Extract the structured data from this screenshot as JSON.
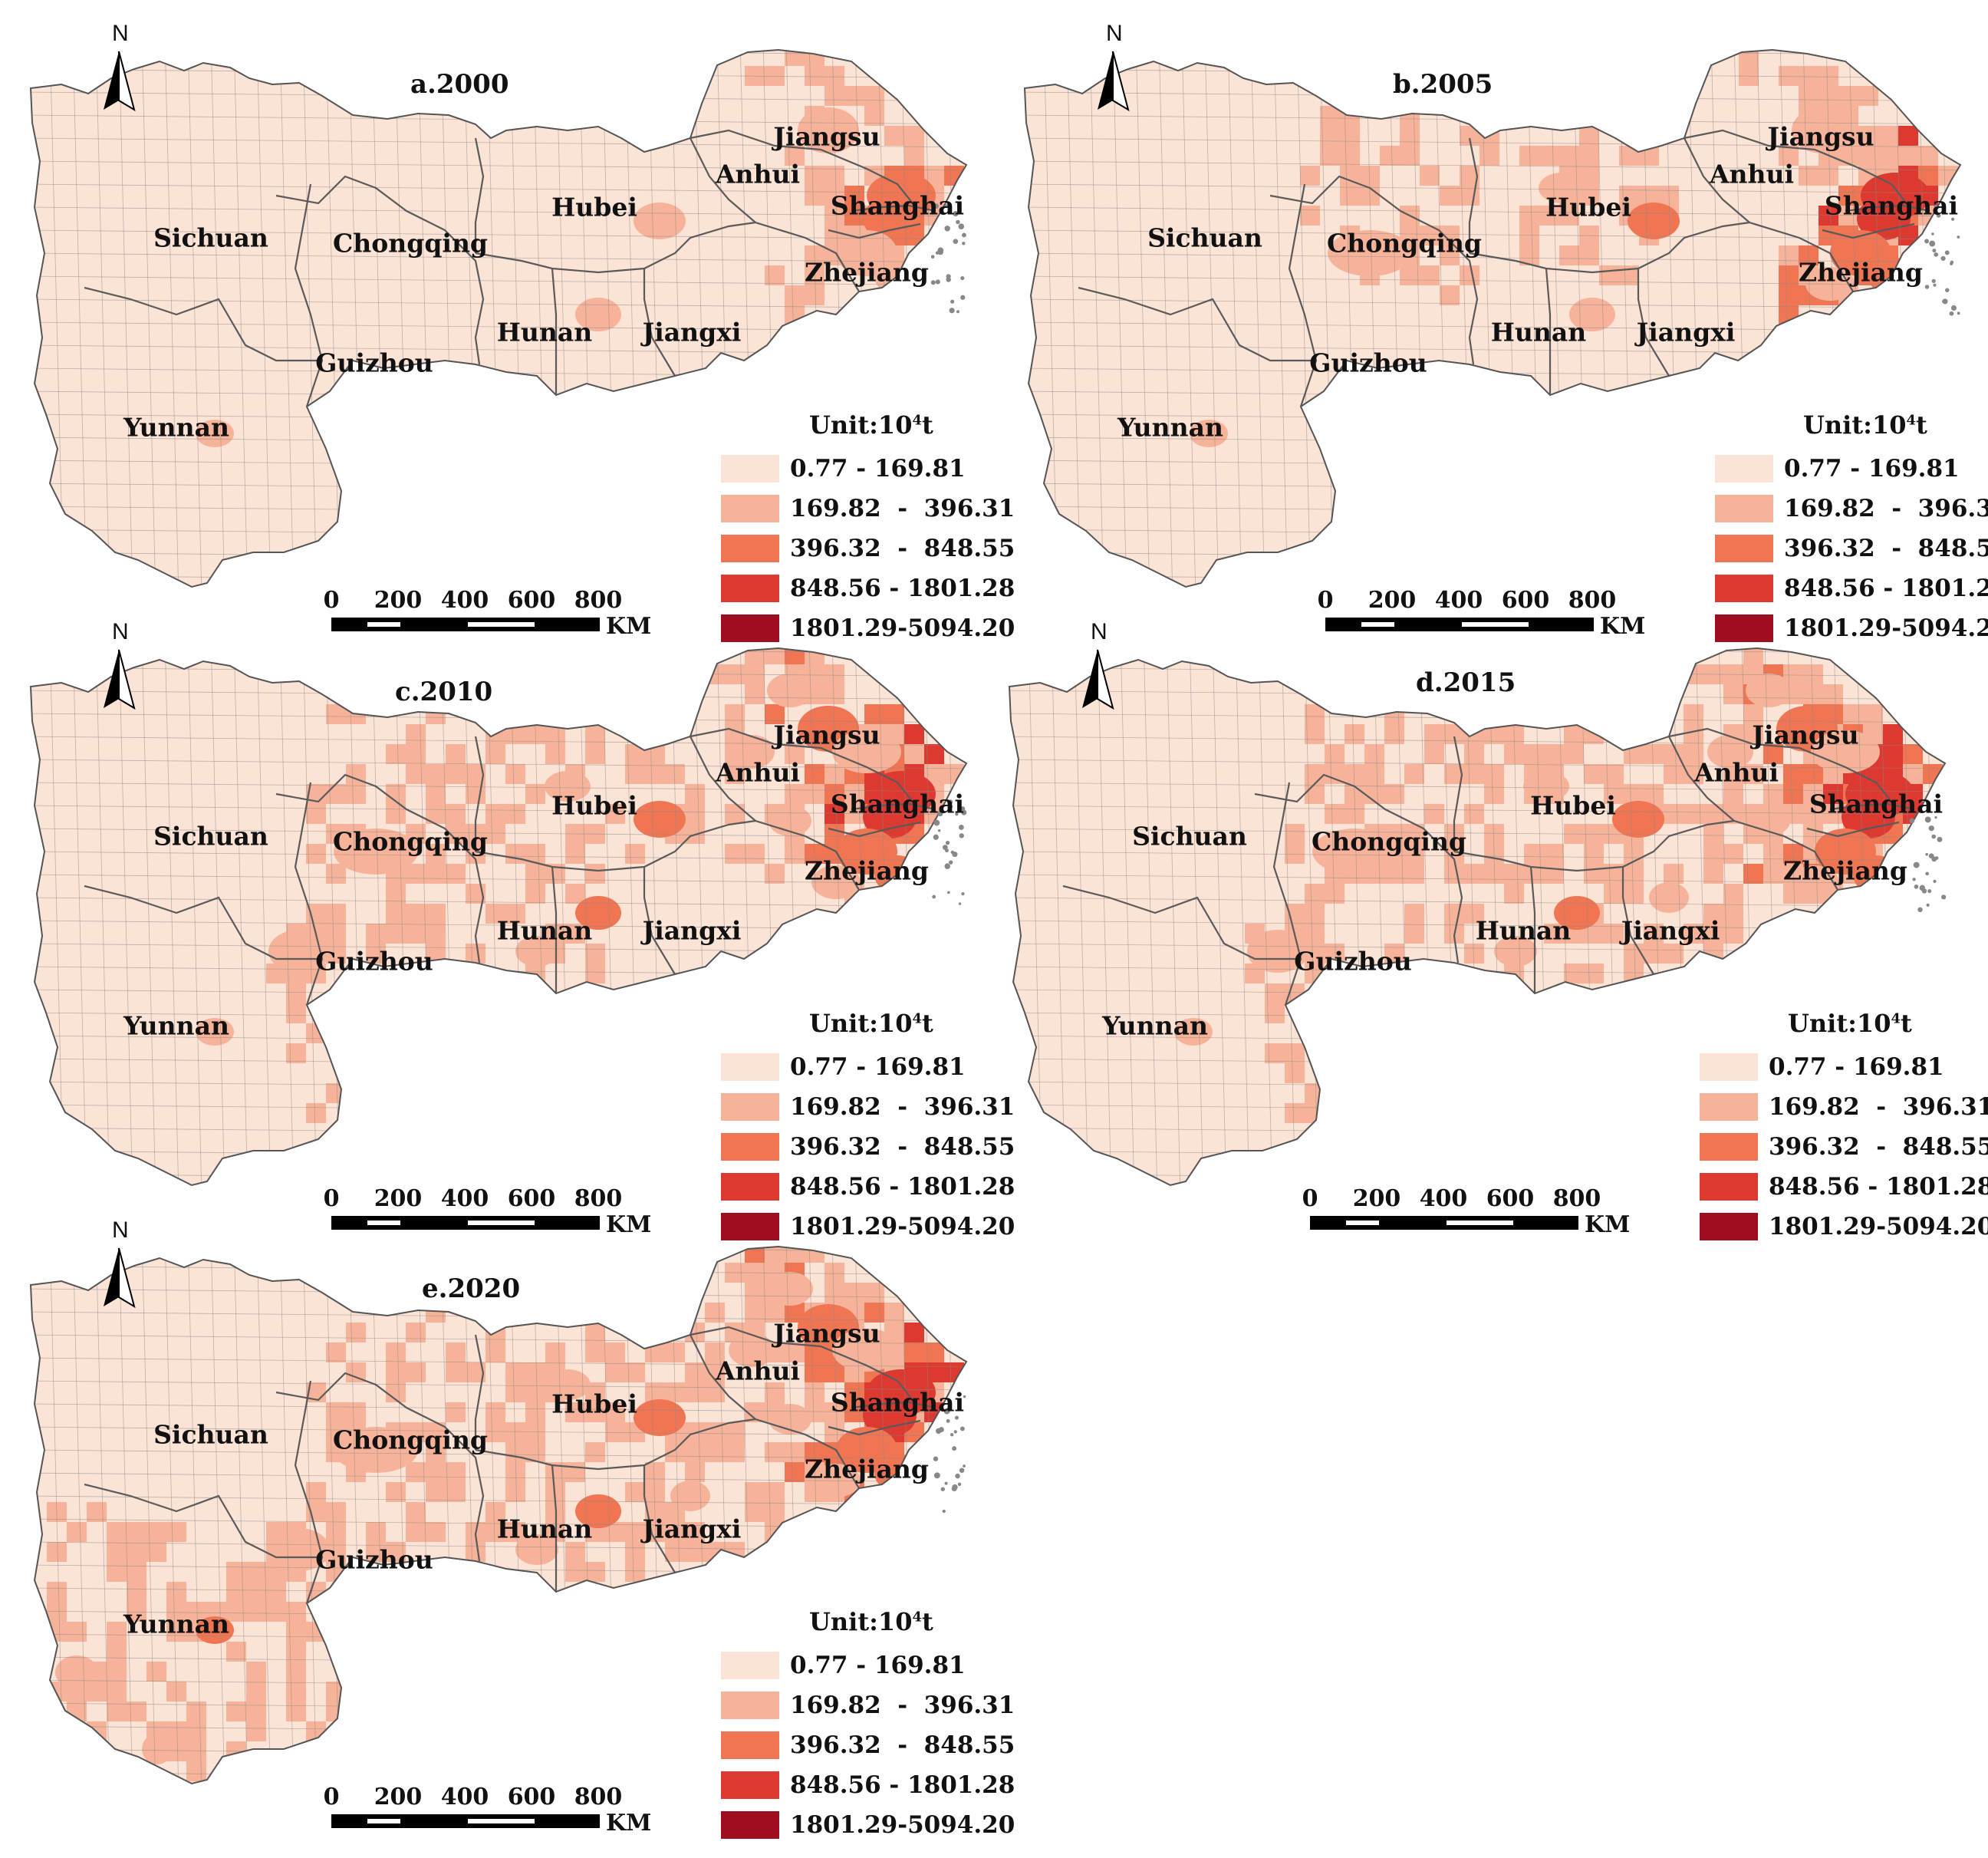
{
  "colors": {
    "class1": "#fbe3d6",
    "class2": "#f6b399",
    "class3": "#ef7553",
    "class4": "#dc3931",
    "class5": "#9e0d20",
    "boundary": "#8a8a8a",
    "province_boundary": "#5a5a5a"
  },
  "legend": {
    "title_prefix": "Unit:10",
    "title_exp": "4",
    "title_suffix": "t",
    "classes": [
      {
        "label": "0.77 - 169.81",
        "color": "#fbe3d6"
      },
      {
        "label": "169.82  -  396.31",
        "color": "#f6b399"
      },
      {
        "label": "396.32  -  848.55",
        "color": "#ef7553"
      },
      {
        "label": "848.56 - 1801.28",
        "color": "#dc3931"
      },
      {
        "label": "1801.29-5094.20",
        "color": "#9e0d20"
      }
    ]
  },
  "scale_bar": {
    "ticks": [
      "0",
      "200",
      "400",
      "600",
      "800"
    ],
    "unit": "KM"
  },
  "north_arrow": {
    "label": "N",
    "icon": "north-arrow-icon"
  },
  "provinces": [
    "Sichuan",
    "Chongqing",
    "Yunnan",
    "Guizhou",
    "Hubei",
    "Hunan",
    "Jiangxi",
    "Anhui",
    "Jiangsu",
    "Shanghai",
    "Zhejiang"
  ],
  "panels": [
    {
      "title": "a.2000",
      "province_levels": {
        "Sichuan": 1,
        "Chongqing": 1,
        "Yunnan": 1,
        "Guizhou": 1,
        "Hubei": 1,
        "Hunan": 1,
        "Jiangxi": 1,
        "Anhui": 1,
        "Jiangsu": 2,
        "Shanghai": 3,
        "Zhejiang": 2
      }
    },
    {
      "title": "b.2005",
      "province_levels": {
        "Sichuan": 1,
        "Chongqing": 2,
        "Yunnan": 1,
        "Guizhou": 1,
        "Hubei": 2,
        "Hunan": 1,
        "Jiangxi": 1,
        "Anhui": 1,
        "Jiangsu": 2,
        "Shanghai": 4,
        "Zhejiang": 3
      }
    },
    {
      "title": "c.2010",
      "province_levels": {
        "Sichuan": 1,
        "Chongqing": 2,
        "Yunnan": 1,
        "Guizhou": 2,
        "Hubei": 2,
        "Hunan": 2,
        "Jiangxi": 1,
        "Anhui": 2,
        "Jiangsu": 3,
        "Shanghai": 4,
        "Zhejiang": 3
      }
    },
    {
      "title": "d.2015",
      "province_levels": {
        "Sichuan": 1,
        "Chongqing": 2,
        "Yunnan": 1,
        "Guizhou": 2,
        "Hubei": 2,
        "Hunan": 2,
        "Jiangxi": 2,
        "Anhui": 2,
        "Jiangsu": 3,
        "Shanghai": 4,
        "Zhejiang": 3
      }
    },
    {
      "title": "e.2020",
      "province_levels": {
        "Sichuan": 1,
        "Chongqing": 2,
        "Yunnan": 2,
        "Guizhou": 2,
        "Hubei": 2,
        "Hunan": 2,
        "Jiangxi": 2,
        "Anhui": 2,
        "Jiangsu": 3,
        "Shanghai": 4,
        "Zhejiang": 3
      }
    }
  ]
}
